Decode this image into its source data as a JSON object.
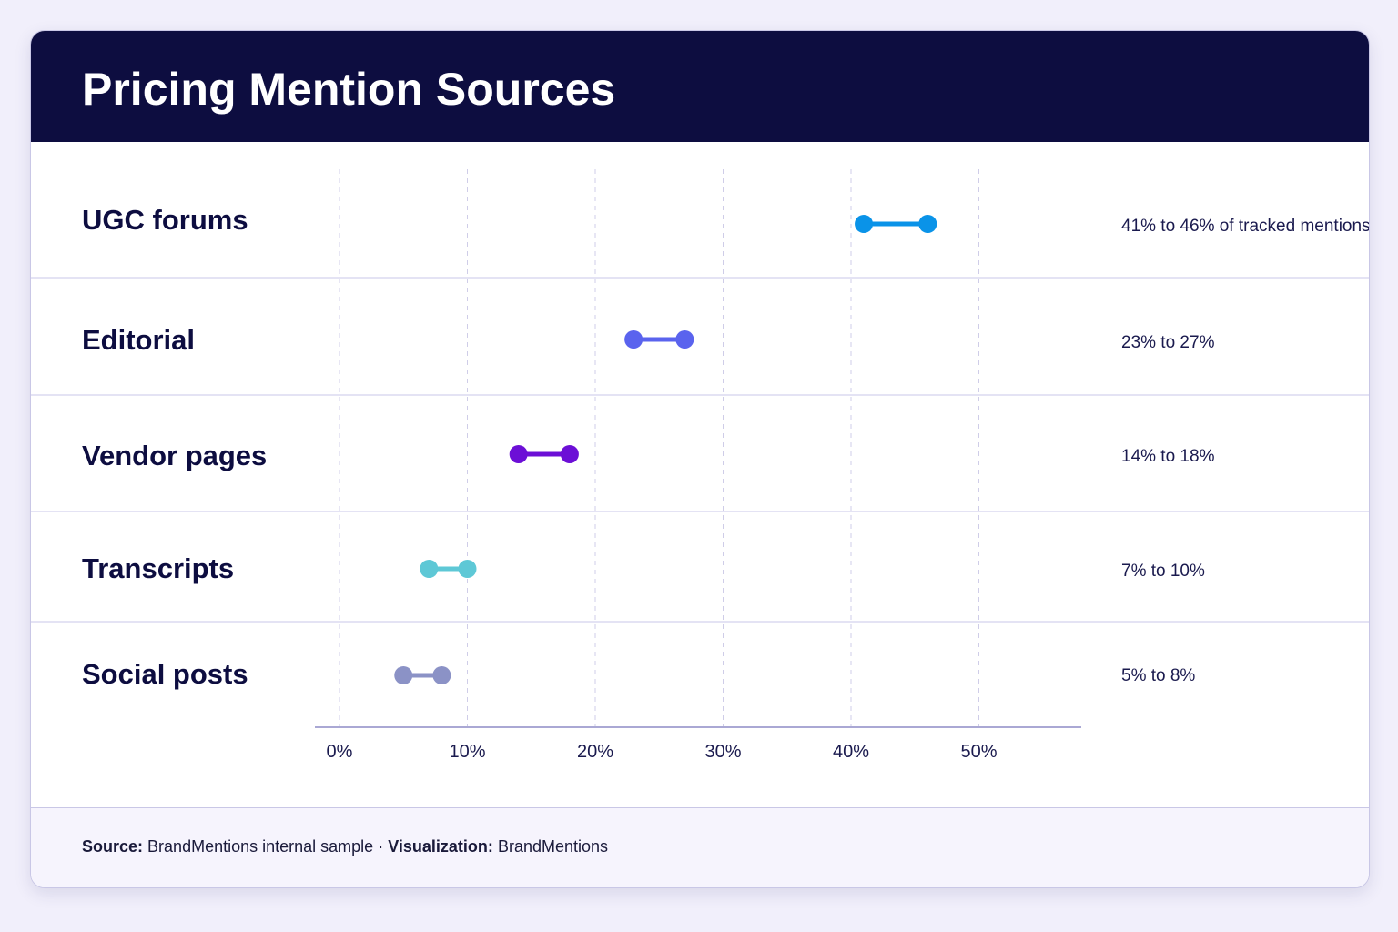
{
  "title": "Pricing Mention Sources",
  "footer": {
    "source_label": "Source:",
    "source_value": "BrandMentions internal sample",
    "separator": "·",
    "viz_label": "Visualization:",
    "viz_value": "BrandMentions"
  },
  "chart_data": {
    "type": "range-dot",
    "title": "Pricing Mention Sources",
    "xlabel": "",
    "ylabel": "",
    "xlim": [
      0,
      60
    ],
    "x_ticks": [
      "0%",
      "10%",
      "20%",
      "30%",
      "40%",
      "50%"
    ],
    "x_tick_values": [
      0,
      10,
      20,
      30,
      40,
      50
    ],
    "grid": "vertical dashed",
    "rows": [
      {
        "label": "UGC forums",
        "low": 41,
        "high": 46,
        "range_label": "41% to 46% of tracked mentions",
        "color": "#0a93e8"
      },
      {
        "label": "Editorial",
        "low": 23,
        "high": 27,
        "range_label": "23% to 27%",
        "color": "#5a63ee"
      },
      {
        "label": "Vendor pages",
        "low": 14,
        "high": 18,
        "range_label": "14% to 18%",
        "color": "#6c0fd6"
      },
      {
        "label": "Transcripts",
        "low": 7,
        "high": 10,
        "range_label": "7% to 10%",
        "color": "#5ec8d6"
      },
      {
        "label": "Social posts",
        "low": 5,
        "high": 8,
        "range_label": "5% to 8%",
        "color": "#8b92c6"
      }
    ]
  }
}
